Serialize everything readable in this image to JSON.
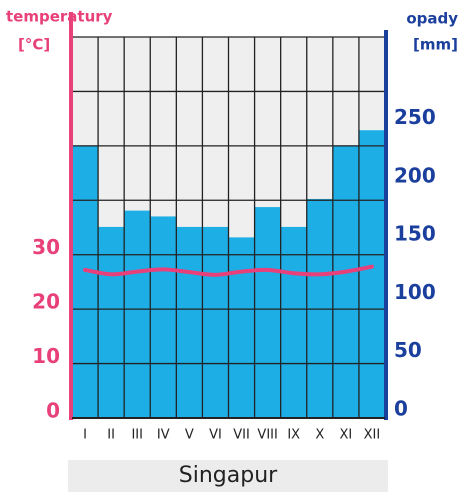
{
  "chart_data": {
    "type": "bar",
    "title": "Singapur",
    "ylabel": "temperatury",
    "yunit": "[°C]",
    "y2label": "opady",
    "y2unit": "[mm]",
    "categories": [
      "I",
      "II",
      "III",
      "IV",
      "V",
      "VI",
      "VII",
      "VIII",
      "IX",
      "X",
      "XI",
      "XII"
    ],
    "series": [
      {
        "type": "bar",
        "axis": "y2",
        "color": "#1eaee6",
        "values": [
          234,
          164,
          178,
          173,
          164,
          164,
          155,
          181,
          164,
          188,
          234,
          247
        ]
      },
      {
        "type": "line",
        "axis": "y",
        "color": "#e8407a",
        "values": [
          27.2,
          26.4,
          26.9,
          27.3,
          26.8,
          26.3,
          26.9,
          27.2,
          26.6,
          26.4,
          26.9,
          27.8
        ]
      }
    ],
    "ylim": [
      0,
      70
    ],
    "yticks": [
      0,
      10,
      20,
      30
    ],
    "y2lim": [
      0,
      327
    ],
    "y2ticks": [
      0,
      50,
      100,
      150,
      200,
      250
    ],
    "grid": true
  }
}
